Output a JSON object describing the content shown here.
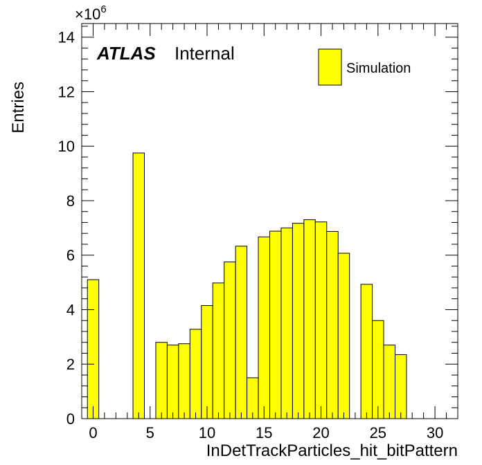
{
  "chart_data": {
    "type": "bar",
    "xlabel": "InDetTrackParticles_hit_bitPattern",
    "ylabel": "Entries",
    "xlim": [
      -1,
      32
    ],
    "ylim": [
      0,
      14.5
    ],
    "y_multiplier": {
      "base": "×10",
      "exponent": "6"
    },
    "bin_width": 1,
    "x_ticks": [
      0,
      5,
      10,
      15,
      20,
      25,
      30
    ],
    "y_ticks": [
      0,
      2,
      4,
      6,
      8,
      10,
      12,
      14
    ],
    "x_bins": [
      0,
      1,
      2,
      3,
      4,
      5,
      6,
      7,
      8,
      9,
      10,
      11,
      12,
      13,
      14,
      15,
      16,
      17,
      18,
      19,
      20,
      21,
      22,
      23,
      24,
      25,
      26,
      27,
      28,
      29,
      30,
      31
    ],
    "series": [
      {
        "name": "Simulation",
        "color": "#ffff00",
        "values": [
          5.1,
          0,
          0,
          0,
          9.75,
          0,
          2.8,
          2.7,
          2.75,
          3.28,
          4.15,
          4.98,
          5.75,
          6.33,
          1.5,
          6.67,
          6.88,
          7.0,
          7.17,
          7.3,
          7.22,
          6.87,
          6.07,
          0,
          4.93,
          3.6,
          2.7,
          2.35,
          0,
          0,
          0,
          0
        ]
      }
    ],
    "labels": {
      "atlas": "ATLAS",
      "status": "Internal"
    },
    "legend_position": "top-right",
    "grid": false
  }
}
